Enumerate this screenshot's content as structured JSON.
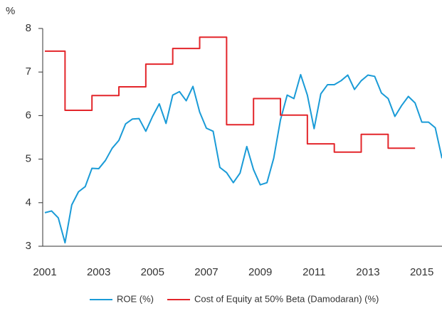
{
  "chart_data": {
    "type": "line",
    "y_label": "%",
    "xlim": [
      2001,
      2015.75
    ],
    "xticks": [
      2001,
      2003,
      2005,
      2007,
      2009,
      2011,
      2013,
      2015
    ],
    "ylim": [
      3,
      8
    ],
    "yticks": [
      3,
      4,
      5,
      6,
      7,
      8
    ],
    "grid": false,
    "legend": "bottom",
    "series": [
      {
        "name": "ROE (%)",
        "color": "#1a9bd7",
        "x": [
          2001,
          2001.25,
          2001.5,
          2001.75,
          2002,
          2002.25,
          2002.5,
          2002.75,
          2003,
          2003.25,
          2003.5,
          2003.75,
          2004,
          2004.25,
          2004.5,
          2004.75,
          2005,
          2005.25,
          2005.5,
          2005.75,
          2006,
          2006.25,
          2006.5,
          2006.75,
          2007,
          2007.25,
          2007.5,
          2007.75,
          2008,
          2008.25,
          2008.5,
          2008.75,
          2009,
          2009.25,
          2009.5,
          2009.75,
          2010,
          2010.25,
          2010.5,
          2010.75,
          2011,
          2011.25,
          2011.5,
          2011.75,
          2012,
          2012.25,
          2012.5,
          2012.75,
          2013,
          2013.25,
          2013.5,
          2013.75,
          2014,
          2014.25,
          2014.5,
          2014.75,
          2015,
          2015.25,
          2015.5,
          2015.75
        ],
        "values": [
          3.77,
          3.81,
          3.65,
          3.08,
          3.95,
          4.25,
          4.37,
          4.79,
          4.78,
          4.97,
          5.25,
          5.43,
          5.81,
          5.92,
          5.93,
          5.64,
          5.98,
          6.27,
          5.82,
          6.47,
          6.55,
          6.34,
          6.67,
          6.08,
          5.71,
          5.64,
          4.81,
          4.69,
          4.46,
          4.68,
          5.29,
          4.76,
          4.41,
          4.46,
          5.02,
          5.9,
          6.47,
          6.39,
          6.94,
          6.47,
          5.7,
          6.5,
          6.71,
          6.71,
          6.8,
          6.93,
          6.6,
          6.8,
          6.93,
          6.9,
          6.52,
          6.39,
          5.98,
          6.23,
          6.44,
          6.29,
          5.85,
          5.85,
          5.72,
          5.02
        ]
      },
      {
        "name": "Cost of Equity at 50% Beta (Damodaran) (%)",
        "color": "#e3262b",
        "x": [
          2001,
          2001.75,
          2001.75,
          2002.75,
          2002.75,
          2003.75,
          2003.75,
          2004.75,
          2004.75,
          2005.75,
          2005.75,
          2006.75,
          2006.75,
          2007.75,
          2007.75,
          2008.75,
          2008.75,
          2009.75,
          2009.75,
          2010.75,
          2010.75,
          2011.75,
          2011.75,
          2012.75,
          2012.75,
          2013.75,
          2013.75,
          2014.75
        ],
        "values": [
          7.48,
          7.48,
          6.12,
          6.12,
          6.46,
          6.46,
          6.66,
          6.66,
          7.18,
          7.18,
          7.54,
          7.54,
          7.8,
          7.8,
          5.79,
          5.79,
          6.39,
          6.39,
          6.01,
          6.01,
          5.35,
          5.35,
          5.16,
          5.16,
          5.57,
          5.57,
          5.25,
          5.25
        ]
      }
    ]
  }
}
